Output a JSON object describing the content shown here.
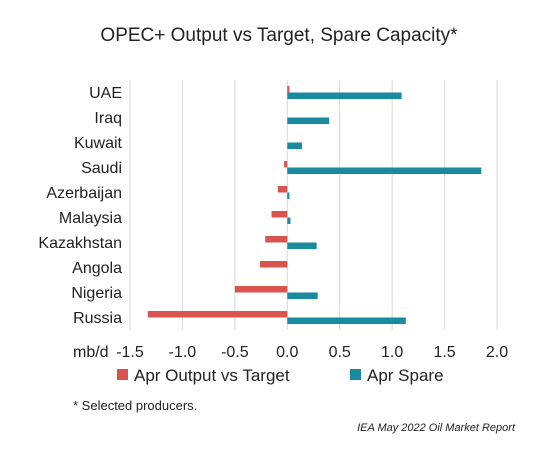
{
  "chart_data": {
    "type": "bar",
    "orientation": "horizontal",
    "title": "OPEC+ Output vs Target, Spare Capacity*",
    "xlabel": "",
    "ylabel": "",
    "unit_label": "mb/d",
    "categories": [
      "UAE",
      "Iraq",
      "Kuwait",
      "Saudi",
      "Azerbaijan",
      "Malaysia",
      "Kazakhstan",
      "Angola",
      "Nigeria",
      "Russia"
    ],
    "series": [
      {
        "name": "Apr Output vs Target",
        "color": "#d9534f",
        "values": [
          0.02,
          0.0,
          0.0,
          -0.03,
          -0.09,
          -0.15,
          -0.21,
          -0.26,
          -0.5,
          -1.33
        ]
      },
      {
        "name": "Apr Spare",
        "color": "#1a8a9e",
        "values": [
          1.09,
          0.4,
          0.14,
          1.85,
          0.02,
          0.03,
          0.28,
          0.0,
          0.29,
          1.13
        ]
      }
    ],
    "xlim": [
      -1.5,
      2.0
    ],
    "xticks": [
      -1.5,
      -1.0,
      -0.5,
      0.0,
      0.5,
      1.0,
      1.5,
      2.0
    ],
    "xtick_labels": [
      "-1.5",
      "-1.0",
      "-0.5",
      "0.0",
      "0.5",
      "1.0",
      "1.5",
      "2.0"
    ],
    "grid": true,
    "legend_position": "bottom",
    "footnote": "* Selected producers.",
    "source": "IEA May 2022 Oil Market Report"
  }
}
